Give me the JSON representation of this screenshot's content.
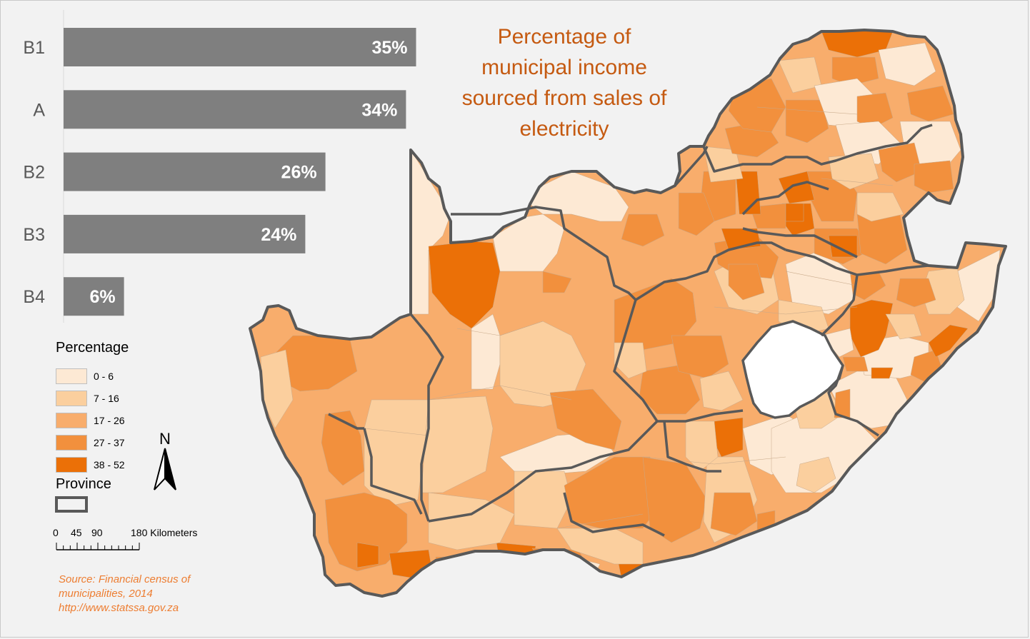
{
  "title_lines": [
    "Percentage of",
    "municipal income",
    "sourced from sales of",
    "electricity"
  ],
  "chart_data": {
    "type": "bar",
    "orientation": "horizontal",
    "categories": [
      "B1",
      "A",
      "B2",
      "B3",
      "B4"
    ],
    "values": [
      35,
      34,
      26,
      24,
      6
    ],
    "value_labels": [
      "35%",
      "34%",
      "26%",
      "24%",
      "6%"
    ],
    "bar_color": "#7f7f7f",
    "title": "",
    "xlabel": "",
    "ylabel": ""
  },
  "legend": {
    "title": "Percentage",
    "items": [
      {
        "label": "0 - 6",
        "color": "#fde9d4"
      },
      {
        "label": "7 - 16",
        "color": "#fbcf9e"
      },
      {
        "label": "17 - 26",
        "color": "#f8ad6c"
      },
      {
        "label": "27 - 37",
        "color": "#f2903d"
      },
      {
        "label": "38 - 52",
        "color": "#eb7007"
      }
    ],
    "province_label": "Province",
    "province_border_color": "#595959"
  },
  "north_arrow": {
    "label": "N"
  },
  "scale_bar": {
    "ticks": [
      "0",
      "45",
      "90",
      "180 Kilometers"
    ]
  },
  "source": {
    "lines": [
      "Source: Financial census of",
      "municipalities, 2014",
      "http://www.statssa.gov.za"
    ]
  },
  "map_area": {
    "country": "South Africa",
    "lesotho_color": "#ffffff",
    "background_color": "#f2f2f2"
  }
}
